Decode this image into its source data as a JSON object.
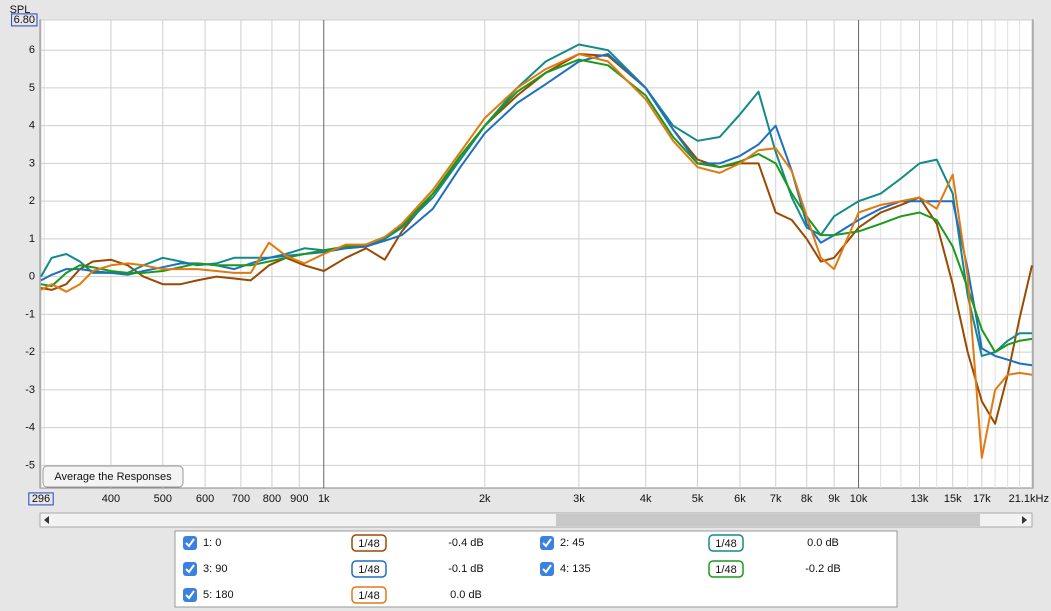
{
  "chart_data": {
    "type": "line",
    "y_axis_label": "SPL",
    "xscale": "log",
    "xlim": [
      296,
      21100
    ],
    "ylim": [
      -5.6,
      6.8
    ],
    "xticks": [
      {
        "value": 296,
        "label": "296"
      },
      400,
      500,
      600,
      700,
      800,
      900,
      {
        "value": 1000,
        "label": "1k"
      },
      {
        "value": 2000,
        "label": "2k"
      },
      {
        "value": 3000,
        "label": "3k"
      },
      {
        "value": 4000,
        "label": "4k"
      },
      {
        "value": 5000,
        "label": "5k"
      },
      {
        "value": 6000,
        "label": "6k"
      },
      {
        "value": 7000,
        "label": "7k"
      },
      {
        "value": 8000,
        "label": "8k"
      },
      {
        "value": 9000,
        "label": "9k"
      },
      {
        "value": 10000,
        "label": "10k"
      },
      {
        "value": 13000,
        "label": "13k"
      },
      {
        "value": 15000,
        "label": "15k"
      },
      {
        "value": 17000,
        "label": "17k"
      },
      {
        "value": 21100,
        "label": "21.1kHz"
      }
    ],
    "xminor": [
      300,
      11000,
      12000,
      14000,
      16000,
      18000,
      19000,
      20000
    ],
    "yticks": [
      {
        "value": 6.8,
        "label": "6.80"
      },
      6,
      5,
      4,
      3,
      2,
      1,
      0,
      -1,
      -2,
      -3,
      -4,
      -5
    ],
    "grid": true,
    "button": "Average the Responses",
    "x": [
      296,
      310,
      330,
      350,
      370,
      400,
      430,
      460,
      500,
      540,
      580,
      630,
      680,
      730,
      790,
      850,
      920,
      1000,
      1100,
      1200,
      1300,
      1400,
      1600,
      1800,
      2000,
      2300,
      2600,
      3000,
      3400,
      4000,
      4500,
      5000,
      5500,
      6000,
      6500,
      7000,
      7500,
      8000,
      8500,
      9000,
      10000,
      11000,
      12000,
      13000,
      14000,
      15000,
      16000,
      17000,
      18000,
      19000,
      20000,
      21100
    ],
    "series": [
      {
        "name": "1: 0",
        "color": "#9a4a00",
        "smoothing": "1/48",
        "offset": "-0.4 dB",
        "checked": true,
        "values": [
          -0.3,
          -0.35,
          -0.2,
          0.2,
          0.4,
          0.45,
          0.3,
          0.0,
          -0.2,
          -0.2,
          -0.1,
          0.0,
          -0.05,
          -0.1,
          0.3,
          0.5,
          0.3,
          0.15,
          0.5,
          0.75,
          0.45,
          1.2,
          2.2,
          3.1,
          4.0,
          4.8,
          5.4,
          5.9,
          5.85,
          5.0,
          3.9,
          3.1,
          2.9,
          3.0,
          3.0,
          1.7,
          1.5,
          1.0,
          0.4,
          0.5,
          1.3,
          1.7,
          1.9,
          2.1,
          1.4,
          -0.2,
          -2.0,
          -3.3,
          -3.9,
          -2.6,
          -1.1,
          0.3
        ]
      },
      {
        "name": "2: 45",
        "color": "#128a8a",
        "smoothing": "1/48",
        "offset": "0.0 dB",
        "checked": true,
        "values": [
          0.0,
          0.5,
          0.6,
          0.4,
          0.1,
          0.1,
          0.1,
          0.3,
          0.5,
          0.4,
          0.3,
          0.35,
          0.5,
          0.5,
          0.5,
          0.6,
          0.75,
          0.7,
          0.75,
          0.8,
          1.0,
          1.3,
          2.1,
          3.1,
          4.0,
          5.0,
          5.7,
          6.15,
          6.0,
          5.0,
          4.0,
          3.6,
          3.7,
          4.3,
          4.9,
          3.3,
          2.1,
          1.3,
          1.1,
          1.6,
          2.0,
          2.2,
          2.6,
          3.0,
          3.1,
          2.2,
          -0.5,
          -2.1,
          -2.0,
          -1.7,
          -1.5,
          -1.5
        ]
      },
      {
        "name": "3: 90",
        "color": "#1f6fc0",
        "smoothing": "1/48",
        "offset": "-0.1 dB",
        "checked": true,
        "values": [
          -0.1,
          0.05,
          0.2,
          0.2,
          0.15,
          0.1,
          0.05,
          0.15,
          0.25,
          0.35,
          0.35,
          0.3,
          0.2,
          0.35,
          0.5,
          0.55,
          0.6,
          0.65,
          0.75,
          0.8,
          0.95,
          1.1,
          1.8,
          2.9,
          3.8,
          4.6,
          5.1,
          5.7,
          5.9,
          5.0,
          3.9,
          3.0,
          3.0,
          3.2,
          3.5,
          4.0,
          2.8,
          1.4,
          0.9,
          1.1,
          1.5,
          1.8,
          2.0,
          2.0,
          2.0,
          2.0,
          0.2,
          -1.9,
          -2.1,
          -2.2,
          -2.3,
          -2.35
        ]
      },
      {
        "name": "4: 135",
        "color": "#1a9a1a",
        "smoothing": "1/48",
        "offset": "-0.2 dB",
        "checked": true,
        "values": [
          -0.2,
          -0.25,
          0.1,
          0.3,
          0.25,
          0.15,
          0.1,
          0.1,
          0.15,
          0.25,
          0.35,
          0.3,
          0.3,
          0.3,
          0.4,
          0.5,
          0.6,
          0.7,
          0.8,
          0.85,
          1.05,
          1.35,
          2.2,
          3.2,
          4.0,
          4.9,
          5.4,
          5.75,
          5.6,
          4.8,
          3.7,
          3.0,
          2.9,
          3.05,
          3.25,
          3.0,
          2.2,
          1.6,
          1.1,
          1.1,
          1.2,
          1.4,
          1.6,
          1.7,
          1.5,
          0.8,
          -0.3,
          -1.4,
          -2.0,
          -1.8,
          -1.7,
          -1.65
        ]
      },
      {
        "name": "5: 180",
        "color": "#e07a10",
        "smoothing": "1/48",
        "offset": "0.0 dB",
        "checked": true,
        "values": [
          -0.35,
          -0.2,
          -0.4,
          -0.2,
          0.15,
          0.3,
          0.35,
          0.3,
          0.2,
          0.2,
          0.2,
          0.15,
          0.1,
          0.1,
          0.9,
          0.55,
          0.35,
          0.6,
          0.85,
          0.85,
          1.05,
          1.4,
          2.3,
          3.3,
          4.2,
          5.0,
          5.5,
          5.9,
          5.7,
          4.7,
          3.6,
          2.9,
          2.75,
          3.0,
          3.35,
          3.4,
          2.8,
          1.6,
          0.5,
          0.2,
          1.7,
          1.9,
          2.0,
          2.1,
          1.8,
          2.7,
          0.0,
          -4.8,
          -3.0,
          -2.6,
          -2.55,
          -2.6
        ]
      }
    ]
  }
}
